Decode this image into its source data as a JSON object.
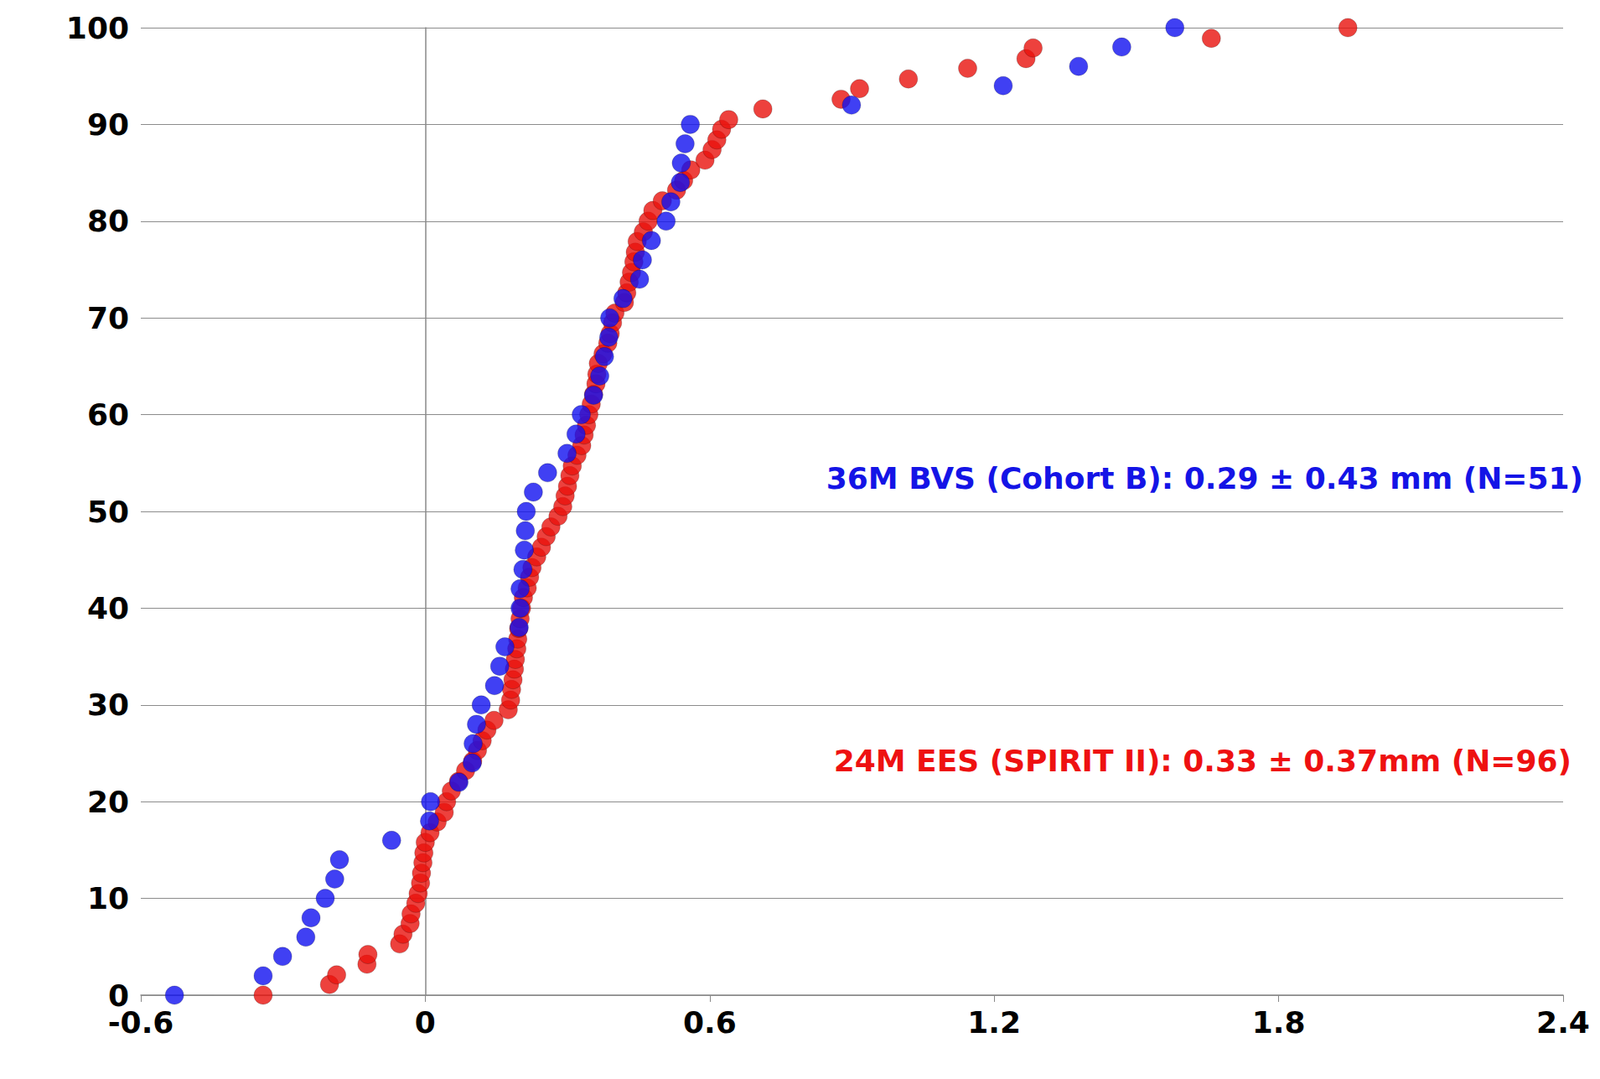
{
  "chart_data": {
    "type": "scatter",
    "xlim": [
      -0.6,
      2.4
    ],
    "xticks": [
      -0.6,
      0,
      0.6,
      1.2,
      1.8,
      2.4
    ],
    "ylim": [
      0,
      100
    ],
    "yticks": [
      0,
      10,
      20,
      30,
      40,
      50,
      60,
      70,
      80,
      90,
      100
    ],
    "grid": true,
    "annotations": [
      {
        "text": "36M BVS (Cohort B): 0.29 ± 0.43 mm (N=51)",
        "color": "#1414e6"
      },
      {
        "text": "24M EES (SPIRIT II): 0.33 ± 0.37mm (N=96)",
        "color": "#ee1111"
      }
    ],
    "series": [
      {
        "color": "#e8120c",
        "marker": "circle",
        "x": [
          -0.342,
          -0.202,
          -0.187,
          -0.123,
          -0.121,
          -0.054,
          -0.047,
          -0.032,
          -0.03,
          -0.02,
          -0.015,
          -0.01,
          -0.008,
          -0.005,
          -0.003,
          0.0,
          0.01,
          0.025,
          0.04,
          0.045,
          0.055,
          0.07,
          0.085,
          0.1,
          0.11,
          0.12,
          0.13,
          0.145,
          0.175,
          0.18,
          0.182,
          0.185,
          0.188,
          0.19,
          0.193,
          0.195,
          0.197,
          0.2,
          0.203,
          0.207,
          0.215,
          0.22,
          0.225,
          0.235,
          0.245,
          0.255,
          0.265,
          0.28,
          0.29,
          0.295,
          0.3,
          0.305,
          0.31,
          0.32,
          0.33,
          0.335,
          0.34,
          0.345,
          0.35,
          0.355,
          0.36,
          0.362,
          0.365,
          0.375,
          0.385,
          0.39,
          0.395,
          0.4,
          0.42,
          0.425,
          0.43,
          0.435,
          0.44,
          0.443,
          0.447,
          0.46,
          0.47,
          0.48,
          0.5,
          0.53,
          0.545,
          0.56,
          0.59,
          0.605,
          0.615,
          0.625,
          0.64,
          0.712,
          0.877,
          0.916,
          1.019,
          1.144,
          1.267,
          1.282,
          1.658,
          1.946
        ],
        "y": [
          0,
          1.1,
          2.1,
          3.2,
          4.2,
          5.3,
          6.3,
          7.4,
          8.4,
          9.5,
          10.5,
          11.6,
          12.6,
          13.7,
          14.7,
          15.8,
          16.8,
          17.9,
          18.9,
          20.0,
          21.1,
          22.1,
          23.2,
          24.2,
          25.3,
          26.3,
          27.4,
          28.4,
          29.5,
          30.5,
          31.6,
          32.6,
          33.7,
          34.7,
          35.8,
          36.8,
          37.9,
          38.9,
          40.0,
          41.1,
          42.1,
          43.2,
          44.2,
          45.3,
          46.3,
          47.4,
          48.4,
          49.5,
          50.5,
          51.6,
          52.6,
          53.7,
          54.7,
          55.8,
          56.8,
          57.9,
          58.9,
          60.0,
          61.1,
          62.1,
          63.2,
          64.2,
          65.3,
          66.3,
          67.4,
          68.4,
          69.5,
          70.5,
          71.6,
          72.6,
          73.7,
          74.7,
          75.8,
          76.8,
          77.9,
          78.9,
          80.0,
          81.1,
          82.1,
          83.2,
          84.2,
          85.3,
          86.3,
          87.4,
          88.4,
          89.5,
          90.5,
          91.6,
          92.6,
          93.7,
          94.7,
          95.8,
          96.8,
          97.9,
          98.9,
          100
        ]
      },
      {
        "color": "#1010f0",
        "marker": "circle",
        "x": [
          -0.529,
          -0.342,
          -0.301,
          -0.252,
          -0.241,
          -0.211,
          -0.191,
          -0.181,
          -0.071,
          0.009,
          0.011,
          0.071,
          0.099,
          0.101,
          0.108,
          0.118,
          0.146,
          0.157,
          0.168,
          0.198,
          0.2,
          0.2,
          0.206,
          0.209,
          0.211,
          0.213,
          0.228,
          0.258,
          0.299,
          0.318,
          0.329,
          0.355,
          0.368,
          0.378,
          0.387,
          0.389,
          0.417,
          0.452,
          0.458,
          0.477,
          0.508,
          0.518,
          0.538,
          0.54,
          0.548,
          0.559,
          0.899,
          1.219,
          1.378,
          1.469,
          1.581
        ],
        "y": [
          0,
          2,
          4,
          6,
          8,
          10,
          12,
          14,
          16,
          18,
          20,
          22,
          24,
          26,
          28,
          30,
          32,
          34,
          36,
          38,
          40,
          42,
          44,
          46,
          48,
          50,
          52,
          54,
          56,
          58,
          60,
          62,
          64,
          66,
          68,
          70,
          72,
          74,
          76,
          78,
          80,
          82,
          84,
          86,
          88,
          90,
          92,
          94,
          96,
          98,
          100
        ]
      }
    ]
  }
}
